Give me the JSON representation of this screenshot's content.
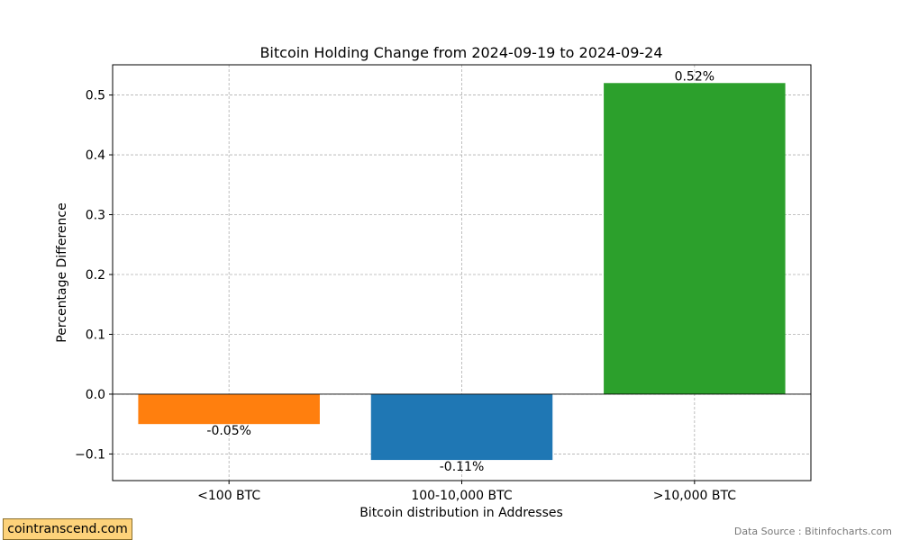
{
  "chart_data": {
    "type": "bar",
    "title": "Bitcoin Holding Change from 2024-09-19 to 2024-09-24",
    "xlabel": "Bitcoin distribution in Addresses",
    "ylabel": "Percentage Difference",
    "categories": [
      "<100 BTC",
      "100-10,000 BTC",
      ">10,000 BTC"
    ],
    "values": [
      -0.05,
      -0.11,
      0.52
    ],
    "data_labels": [
      "-0.05%",
      "-0.11%",
      "0.52%"
    ],
    "colors": [
      "#ff7f0e",
      "#1f77b4",
      "#2ca02c"
    ],
    "ylim": [
      -0.1445,
      0.5505
    ],
    "yticks": [
      -0.1,
      0.0,
      0.1,
      0.2,
      0.3,
      0.4,
      0.5
    ],
    "ytick_labels": [
      "−0.1",
      "0.0",
      "0.1",
      "0.2",
      "0.3",
      "0.4",
      "0.5"
    ],
    "grid": true
  },
  "watermark": "cointranscend.com",
  "source_note": "Data Source : Bitinfocharts.com"
}
